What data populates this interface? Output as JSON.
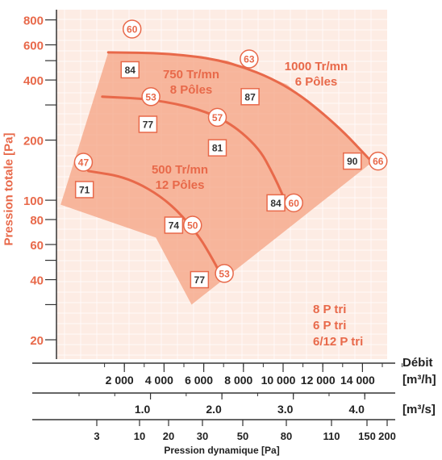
{
  "chart_data": {
    "type": "line",
    "ylabel": "Pression totale [Pa]",
    "y_scale": "log",
    "ylim": [
      16,
      900
    ],
    "y_ticks": [
      20,
      40,
      60,
      80,
      100,
      200,
      400,
      600,
      800
    ],
    "x_axes": [
      {
        "unit": "[m³/h]",
        "ticks": [
          "2 000",
          "4 000",
          "6 000",
          "8 000",
          "10 000",
          "12 000",
          "14 000"
        ]
      },
      {
        "unit": "[m³/s]",
        "ticks": [
          "1.0",
          "2.0",
          "3.0",
          "4.0"
        ]
      },
      {
        "label": "Pression dynamique [Pa]",
        "ticks": [
          "3",
          "10",
          "20",
          "30",
          "50",
          "80",
          "110",
          "150",
          "200"
        ]
      }
    ],
    "x_header": "Débit",
    "series": [
      {
        "name": "1000 Tr/mn\n6 Pôles",
        "x_m3h": [
          2000,
          5000,
          8000,
          11000,
          13500,
          15300
        ],
        "y": [
          550,
          545,
          500,
          380,
          240,
          155
        ]
      },
      {
        "name": "750 Tr/mn\n8 Pôles",
        "x_m3h": [
          1700,
          4500,
          7500,
          9500,
          10400,
          11000
        ],
        "y": [
          330,
          320,
          270,
          190,
          130,
          95
        ]
      },
      {
        "name": "500 Tr/mn\n12 Pôles",
        "x_m3h": [
          1000,
          3000,
          5000,
          6500,
          7300,
          7800
        ],
        "y": [
          140,
          130,
          100,
          68,
          50,
          40
        ]
      }
    ],
    "annotations": {
      "circles": [
        {
          "text": "60",
          "x": 3200,
          "y": 720
        },
        {
          "text": "63",
          "x": 9100,
          "y": 510
        },
        {
          "text": "53",
          "x": 4150,
          "y": 330
        },
        {
          "text": "57",
          "x": 7500,
          "y": 260
        },
        {
          "text": "47",
          "x": 750,
          "y": 155
        },
        {
          "text": "50",
          "x": 6250,
          "y": 75
        },
        {
          "text": "53",
          "x": 7850,
          "y": 43
        },
        {
          "text": "60",
          "x": 11350,
          "y": 97
        },
        {
          "text": "66",
          "x": 15600,
          "y": 157
        }
      ],
      "squares": [
        {
          "text": "84",
          "x": 3100,
          "y": 450
        },
        {
          "text": "87",
          "x": 9150,
          "y": 330
        },
        {
          "text": "77",
          "x": 4000,
          "y": 240
        },
        {
          "text": "81",
          "x": 7500,
          "y": 183
        },
        {
          "text": "71",
          "x": 800,
          "y": 113
        },
        {
          "text": "74",
          "x": 5300,
          "y": 75
        },
        {
          "text": "77",
          "x": 6600,
          "y": 40
        },
        {
          "text": "84",
          "x": 10450,
          "y": 97
        },
        {
          "text": "90",
          "x": 14300,
          "y": 157
        }
      ]
    },
    "speed_labels": [
      "750 Tr/mn\n8 Pôles",
      "1000 Tr/mn\n6 Pôles",
      "500 Tr/mn\n12 Pôles"
    ],
    "legend": [
      "8 P tri",
      "6 P tri",
      "6/12 P tri"
    ],
    "colors": {
      "accent": "#e8694a",
      "fill": "#f4a383",
      "bg": "#fdece4"
    }
  }
}
